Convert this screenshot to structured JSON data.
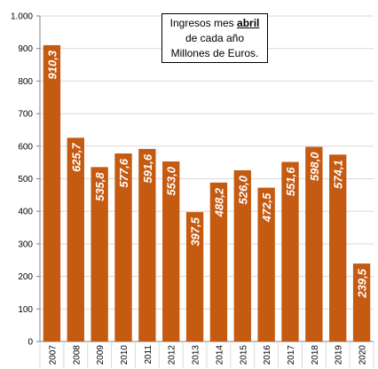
{
  "chart_data": {
    "type": "bar",
    "title": {
      "line1_prefix": "Ingresos mes ",
      "line1_emphasis": "abril",
      "line2": "de cada año",
      "line3": "Millones de Euros."
    },
    "categories": [
      "2007",
      "2008",
      "2009",
      "2010",
      "2011",
      "2012",
      "2013",
      "2014",
      "2015",
      "2016",
      "2017",
      "2018",
      "2019",
      "2020"
    ],
    "values": [
      910.3,
      625.7,
      535.8,
      577.6,
      591.6,
      553.0,
      397.5,
      488.2,
      526.0,
      472.5,
      551.6,
      598.0,
      574.1,
      239.5
    ],
    "value_labels": [
      "910,3",
      "625,7",
      "535,8",
      "577,6",
      "591,6",
      "553,0",
      "397,5",
      "488,2",
      "526,0",
      "472,5",
      "551,6",
      "598,0",
      "574,1",
      "239,5"
    ],
    "y_ticks": [
      0,
      100,
      200,
      300,
      400,
      500,
      600,
      700,
      800,
      900,
      1000
    ],
    "y_tick_labels": [
      "0",
      "100",
      "200",
      "300",
      "400",
      "500",
      "600",
      "700",
      "800",
      "900",
      "1.000"
    ],
    "ylim": [
      0,
      1000
    ],
    "xlabel": "",
    "ylabel": "",
    "grid": true,
    "legend": "none",
    "colors": {
      "bar": "#C55A11",
      "grid": "#D9D9D9",
      "axis": "#808080",
      "label": "#ffffff"
    }
  }
}
